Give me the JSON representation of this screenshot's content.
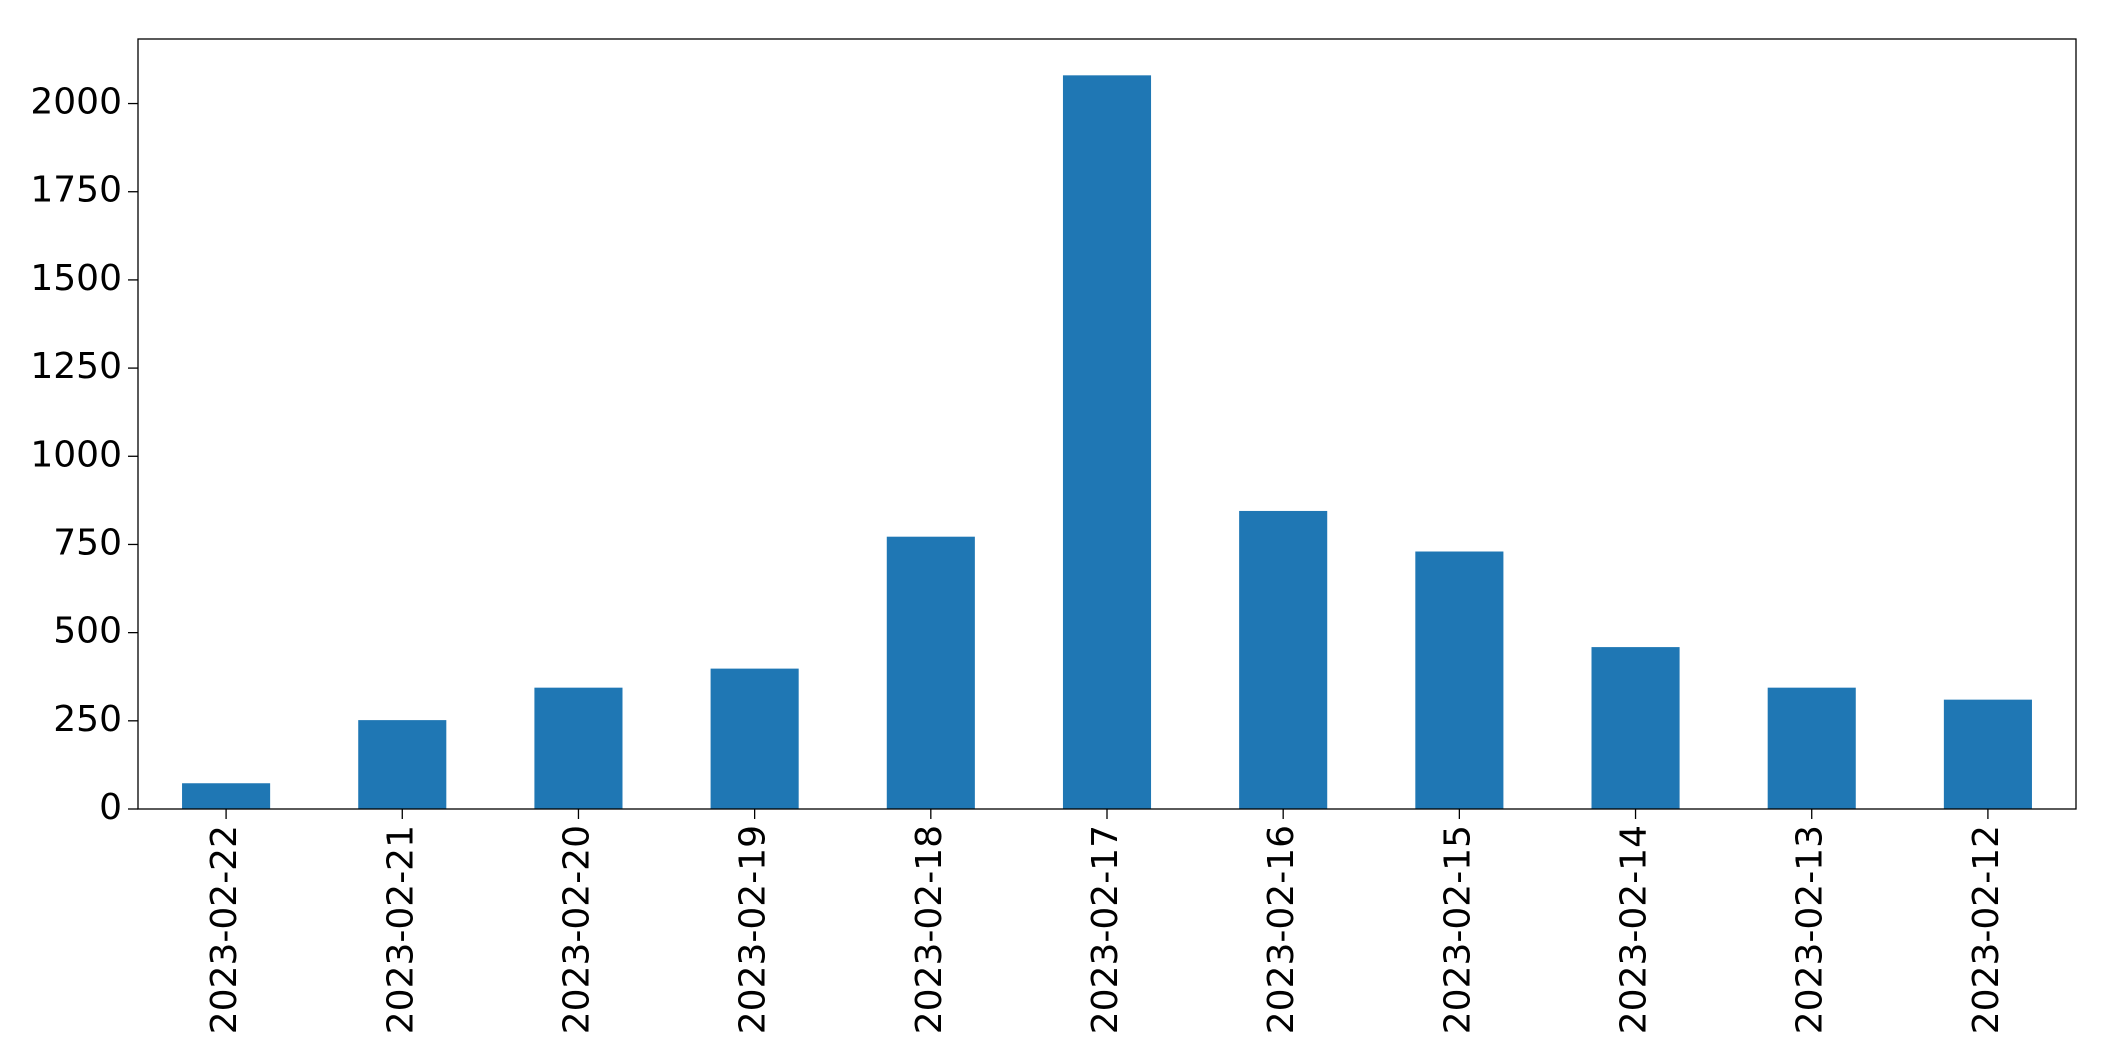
{
  "chart_data": {
    "type": "bar",
    "categories": [
      "2023-02-22",
      "2023-02-21",
      "2023-02-20",
      "2023-02-19",
      "2023-02-18",
      "2023-02-17",
      "2023-02-16",
      "2023-02-15",
      "2023-02-14",
      "2023-02-13",
      "2023-02-12"
    ],
    "values": [
      73,
      252,
      344,
      398,
      772,
      2080,
      845,
      730,
      459,
      344,
      310
    ],
    "color": "#1f77b4",
    "ylim": [
      0,
      2183
    ],
    "yticks": [
      0,
      250,
      500,
      750,
      1000,
      1250,
      1500,
      1750,
      2000
    ],
    "grid": false
  }
}
